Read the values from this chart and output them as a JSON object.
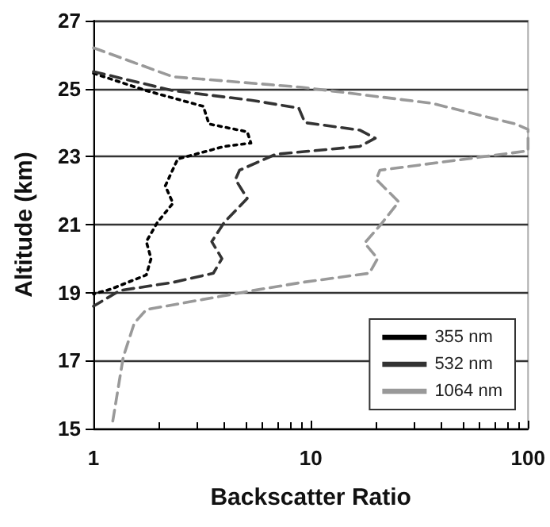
{
  "chart_data": {
    "type": "line",
    "xlabel": "Backscatter Ratio",
    "ylabel": "Altitude (km)",
    "log": "x",
    "xlim": [
      1,
      100
    ],
    "xticks": [
      1,
      10,
      100
    ],
    "ylim": [
      15,
      27
    ],
    "yticks": [
      15,
      17,
      19,
      21,
      23,
      25,
      27
    ],
    "grid": "y",
    "legend": "bottom right",
    "marker": "none",
    "series": [
      {
        "name": "355 nm",
        "color": "#000000",
        "line_style": "dotted",
        "x": [
          1,
          1.75,
          3.2,
          3.4,
          5.1,
          5.3,
          4.0,
          2.44,
          2.14,
          2.32,
          1.97,
          1.75,
          1.84,
          1.75,
          1.2,
          1
        ],
        "values": [
          25.45,
          24.94,
          24.48,
          23.96,
          23.73,
          23.4,
          23.3,
          22.93,
          22.14,
          21.63,
          21.07,
          20.5,
          20.0,
          19.52,
          19.1,
          18.96
        ]
      },
      {
        "name": "532 nm",
        "color": "#333333",
        "line_style": "dashed",
        "x": [
          1,
          2.32,
          5.3,
          8.8,
          9.4,
          16.8,
          19.8,
          16.8,
          6.9,
          4.7,
          4.5,
          5.1,
          4.0,
          3.5,
          3.9,
          3.56,
          2.32,
          1.32,
          1.0
        ],
        "values": [
          25.5,
          24.94,
          24.66,
          24.43,
          24.0,
          23.78,
          23.54,
          23.3,
          23.07,
          22.6,
          22.33,
          21.77,
          21.07,
          20.5,
          20.0,
          19.57,
          19.3,
          19.06,
          18.6
        ]
      },
      {
        "name": "1064 nm",
        "color": "#999999",
        "line_style": "dashed",
        "x": [
          1,
          2.32,
          9.1,
          36,
          87.6,
          100,
          100,
          20.8,
          20,
          25.4,
          20.8,
          17.7,
          20.3,
          18.6,
          9.1,
          5.3,
          1.75,
          1.54,
          1.37,
          1.22
        ],
        "values": [
          26.2,
          25.35,
          25.04,
          24.57,
          23.96,
          23.8,
          23.17,
          22.6,
          22.33,
          21.67,
          20.97,
          20.46,
          20.0,
          19.57,
          19.3,
          19.05,
          18.5,
          18.1,
          17.1,
          15.13
        ]
      }
    ]
  }
}
